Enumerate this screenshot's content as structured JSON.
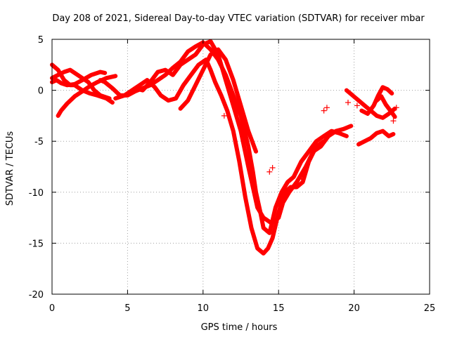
{
  "chart_data": {
    "type": "scatter",
    "title": "Day 208 of 2021, Sidereal Day-to-day VTEC variation (SDTVAR) for receiver mbar",
    "xlabel": "GPS time / hours",
    "ylabel": "SDTVAR / TECUs",
    "xlim": [
      0,
      25
    ],
    "ylim": [
      -20,
      5
    ],
    "xticks": [
      "0",
      "5",
      "10",
      "15",
      "20",
      "25"
    ],
    "yticks": [
      "5",
      "0",
      "-5",
      "-10",
      "-15",
      "-20"
    ],
    "grid": true,
    "marker": "plus",
    "color": "#ff0000",
    "series": [
      {
        "x": [
          0.0,
          0.4,
          0.8,
          1.2,
          1.5,
          2.0,
          2.5,
          3.0,
          3.6,
          4.0
        ],
        "y": [
          2.5,
          2.0,
          1.0,
          0.5,
          0.5,
          0.0,
          -0.3,
          -0.5,
          -0.8,
          -1.2
        ]
      },
      {
        "x": [
          0.0,
          0.4,
          0.8,
          1.2,
          1.6,
          2.0,
          2.4,
          2.8,
          3.2,
          3.8
        ],
        "y": [
          1.2,
          1.5,
          1.8,
          2.0,
          1.6,
          1.2,
          0.8,
          0.0,
          -0.5,
          -0.8
        ]
      },
      {
        "x": [
          0.0,
          0.3,
          0.6,
          1.0,
          1.5,
          2.0,
          2.6,
          3.2,
          3.5
        ],
        "y": [
          0.8,
          1.0,
          0.7,
          0.5,
          0.6,
          1.0,
          1.5,
          1.8,
          1.7
        ]
      },
      {
        "x": [
          0.4,
          0.6,
          1.0,
          1.5,
          2.0,
          2.5,
          3.0,
          3.6,
          4.2
        ],
        "y": [
          -2.5,
          -2.0,
          -1.3,
          -0.6,
          -0.1,
          0.4,
          0.8,
          1.2,
          1.4
        ]
      },
      {
        "x": [
          3.2,
          3.5,
          4.0,
          4.5,
          5.0,
          5.5,
          6.0,
          6.5,
          7.0,
          7.5,
          8.0,
          8.5,
          9.0,
          9.5,
          10.0,
          10.5,
          11.0,
          11.5,
          12.0,
          12.5,
          13.0,
          13.3,
          13.5,
          13.8,
          14.0,
          14.4,
          14.8,
          15.2,
          15.6,
          16.0,
          16.5,
          17.0,
          17.5,
          18.0,
          18.5,
          19.0,
          19.5
        ],
        "y": [
          1.0,
          0.8,
          0.2,
          -0.5,
          -0.5,
          -0.1,
          0.2,
          0.5,
          1.0,
          1.5,
          2.2,
          2.8,
          3.8,
          4.3,
          4.7,
          4.0,
          3.0,
          1.5,
          -0.5,
          -2.5,
          -5.5,
          -8.0,
          -10.0,
          -12.0,
          -13.5,
          -14.0,
          -11.5,
          -10.0,
          -9.0,
          -8.5,
          -7.0,
          -6.0,
          -5.0,
          -4.5,
          -4.0,
          -4.2,
          -4.5
        ]
      },
      {
        "x": [
          4.2,
          4.8,
          5.3,
          5.8,
          6.3,
          6.8,
          7.2,
          7.7,
          8.2,
          8.7,
          9.2,
          9.7,
          10.2,
          10.5,
          10.8,
          11.2,
          11.6,
          12.0,
          12.4,
          12.8,
          13.2,
          13.6,
          14.0,
          14.3,
          14.6,
          15.0,
          15.4,
          15.8,
          16.2,
          16.6,
          17.0,
          17.5,
          18.0
        ],
        "y": [
          -0.8,
          -0.5,
          0.0,
          0.5,
          1.0,
          0.3,
          -0.5,
          -1.0,
          -0.8,
          0.5,
          1.5,
          2.5,
          3.0,
          2.0,
          0.8,
          -0.5,
          -2.0,
          -4.0,
          -7.0,
          -10.5,
          -13.5,
          -15.5,
          -16.0,
          -15.5,
          -14.5,
          -12.0,
          -10.0,
          -9.5,
          -9.5,
          -9.0,
          -7.0,
          -5.5,
          -5.0
        ]
      },
      {
        "x": [
          5.5,
          6.0,
          6.5,
          7.0,
          7.5,
          8.0,
          8.5,
          9.0,
          9.5,
          10.0,
          10.5,
          11.0,
          11.5,
          12.0,
          12.5,
          13.0,
          13.3,
          13.6,
          14.0,
          14.5,
          15.0,
          15.3,
          15.7,
          16.2,
          16.8,
          17.3,
          17.8,
          18.3,
          18.8,
          19.3,
          19.8
        ],
        "y": [
          0.2,
          0.0,
          0.8,
          1.8,
          2.0,
          1.5,
          2.5,
          3.0,
          3.5,
          4.5,
          4.8,
          3.5,
          1.0,
          -1.5,
          -4.0,
          -7.5,
          -9.5,
          -11.5,
          -12.5,
          -13.0,
          -12.5,
          -11.0,
          -10.0,
          -9.0,
          -7.5,
          -6.0,
          -5.5,
          -4.5,
          -4.0,
          -3.8,
          -3.5
        ]
      },
      {
        "x": [
          8.5,
          9.0,
          9.5,
          10.0,
          10.5,
          11.0,
          11.5,
          12.0,
          12.5,
          13.0,
          13.5
        ],
        "y": [
          -1.8,
          -1.0,
          0.5,
          2.0,
          3.5,
          4.0,
          3.0,
          1.0,
          -1.5,
          -4.0,
          -6.0
        ]
      },
      {
        "x": [
          19.5,
          19.9,
          20.3,
          20.7,
          21.1,
          21.5,
          21.9,
          22.3,
          22.7
        ],
        "y": [
          0.0,
          -0.5,
          -1.0,
          -1.5,
          -2.0,
          -2.5,
          -2.7,
          -2.3,
          -1.8
        ]
      },
      {
        "x": [
          20.5,
          20.9,
          21.3,
          21.6,
          21.9,
          22.2,
          22.5
        ],
        "y": [
          -2.0,
          -2.3,
          -1.5,
          -0.5,
          0.3,
          0.1,
          -0.3
        ]
      },
      {
        "x": [
          20.3,
          20.7,
          21.1,
          21.5,
          21.9,
          22.3,
          22.6
        ],
        "y": [
          -5.3,
          -5.0,
          -4.7,
          -4.2,
          -4.0,
          -4.5,
          -4.3
        ]
      },
      {
        "x": [
          21.5,
          21.8,
          22.1,
          22.4,
          22.7
        ],
        "y": [
          -1.0,
          -0.6,
          -1.4,
          -2.0,
          -2.6
        ]
      }
    ],
    "isolated_points": {
      "x": [
        18.0,
        18.2,
        19.6,
        20.2,
        14.6,
        14.4,
        22.8,
        22.6,
        11.4,
        16.5
      ],
      "y": [
        -2.0,
        -1.7,
        -1.2,
        -1.5,
        -7.6,
        -8.0,
        -1.7,
        -3.0,
        -2.5,
        -8.5
      ]
    }
  }
}
